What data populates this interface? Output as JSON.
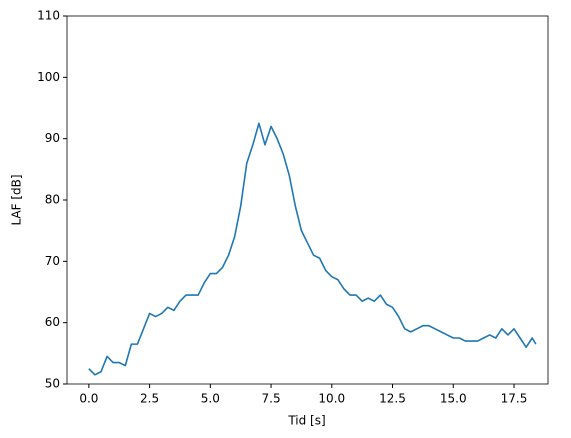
{
  "chart_data": {
    "type": "line",
    "xlabel": "Tid [s]",
    "ylabel": "LAF [dB]",
    "x": [
      0,
      0.25,
      0.5,
      0.75,
      1,
      1.25,
      1.5,
      1.75,
      2,
      2.25,
      2.5,
      2.75,
      3,
      3.25,
      3.5,
      3.75,
      4,
      4.25,
      4.5,
      4.75,
      5,
      5.25,
      5.5,
      5.75,
      6,
      6.25,
      6.5,
      6.75,
      7,
      7.25,
      7.5,
      7.75,
      8,
      8.25,
      8.5,
      8.75,
      9,
      9.25,
      9.5,
      9.75,
      10,
      10.25,
      10.5,
      10.75,
      11,
      11.25,
      11.5,
      11.75,
      12,
      12.25,
      12.5,
      12.75,
      13,
      13.25,
      13.5,
      13.75,
      14,
      14.25,
      14.5,
      14.75,
      15,
      15.25,
      15.5,
      15.75,
      16,
      16.25,
      16.5,
      16.75,
      17,
      17.25,
      17.5,
      17.75,
      18,
      18.25,
      18.4
    ],
    "series": [
      {
        "color": "#1f77b4",
        "values": [
          52.5,
          51.5,
          52,
          54.5,
          53.5,
          53.5,
          53,
          56.5,
          56.5,
          59,
          61.5,
          61,
          61.5,
          62.5,
          62,
          63.5,
          64.5,
          64.5,
          64.5,
          66.5,
          68,
          68,
          69,
          71,
          74,
          79,
          86,
          89,
          92.5,
          89,
          92,
          90,
          87.5,
          84,
          79,
          75,
          73,
          71,
          70.5,
          68.5,
          67.5,
          67,
          65.5,
          64.5,
          64.5,
          63.5,
          64,
          63.5,
          64.5,
          63,
          62.5,
          61,
          59,
          58.5,
          59,
          59.5,
          59.5,
          59,
          58.5,
          58,
          57.5,
          57.5,
          57,
          57,
          57,
          57.5,
          58,
          57.5,
          59,
          58,
          59,
          57.5,
          56,
          57.5,
          56.5
        ]
      }
    ],
    "xlim": [
      -0.9,
      18.9
    ],
    "ylim": [
      50,
      110
    ],
    "xticks": [
      {
        "value": 0,
        "label": "0.0"
      },
      2.5,
      {
        "value": 5,
        "label": "5.0"
      },
      7.5,
      {
        "value": 10,
        "label": "10.0"
      },
      12.5,
      {
        "value": 15,
        "label": "15.0"
      },
      17.5
    ],
    "yticks": [
      50,
      60,
      70,
      80,
      90,
      100,
      110
    ]
  }
}
